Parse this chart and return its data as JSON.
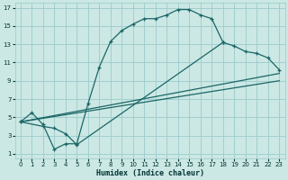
{
  "xlabel": "Humidex (Indice chaleur)",
  "bg_color": "#cce8e4",
  "grid_color": "#99cccc",
  "line_color": "#1a6666",
  "xlim": [
    -0.5,
    23.5
  ],
  "ylim": [
    0.5,
    17.5
  ],
  "xticks": [
    0,
    1,
    2,
    3,
    4,
    5,
    6,
    7,
    8,
    9,
    10,
    11,
    12,
    13,
    14,
    15,
    16,
    17,
    18,
    19,
    20,
    21,
    22,
    23
  ],
  "yticks": [
    1,
    3,
    5,
    7,
    9,
    11,
    13,
    15,
    17
  ],
  "curve1_x": [
    0,
    1,
    2,
    3,
    4,
    5,
    6,
    7,
    8,
    9,
    10,
    11,
    12,
    13,
    14,
    15,
    16,
    17,
    18
  ],
  "curve1_y": [
    4.5,
    5.5,
    4.2,
    1.5,
    2.1,
    2.1,
    6.5,
    10.5,
    13.3,
    14.5,
    15.2,
    15.8,
    15.8,
    16.2,
    16.8,
    16.8,
    16.2,
    15.8,
    13.2
  ],
  "curve2_x": [
    0,
    2,
    3,
    4,
    5,
    18,
    19,
    20,
    21,
    22,
    23
  ],
  "curve2_y": [
    4.5,
    4.0,
    3.8,
    3.2,
    2.0,
    13.2,
    12.8,
    12.2,
    12.0,
    11.5,
    10.2
  ],
  "line1_x": [
    0,
    23
  ],
  "line1_y": [
    4.5,
    9.8
  ],
  "line2_x": [
    0,
    23
  ],
  "line2_y": [
    4.5,
    9.0
  ]
}
